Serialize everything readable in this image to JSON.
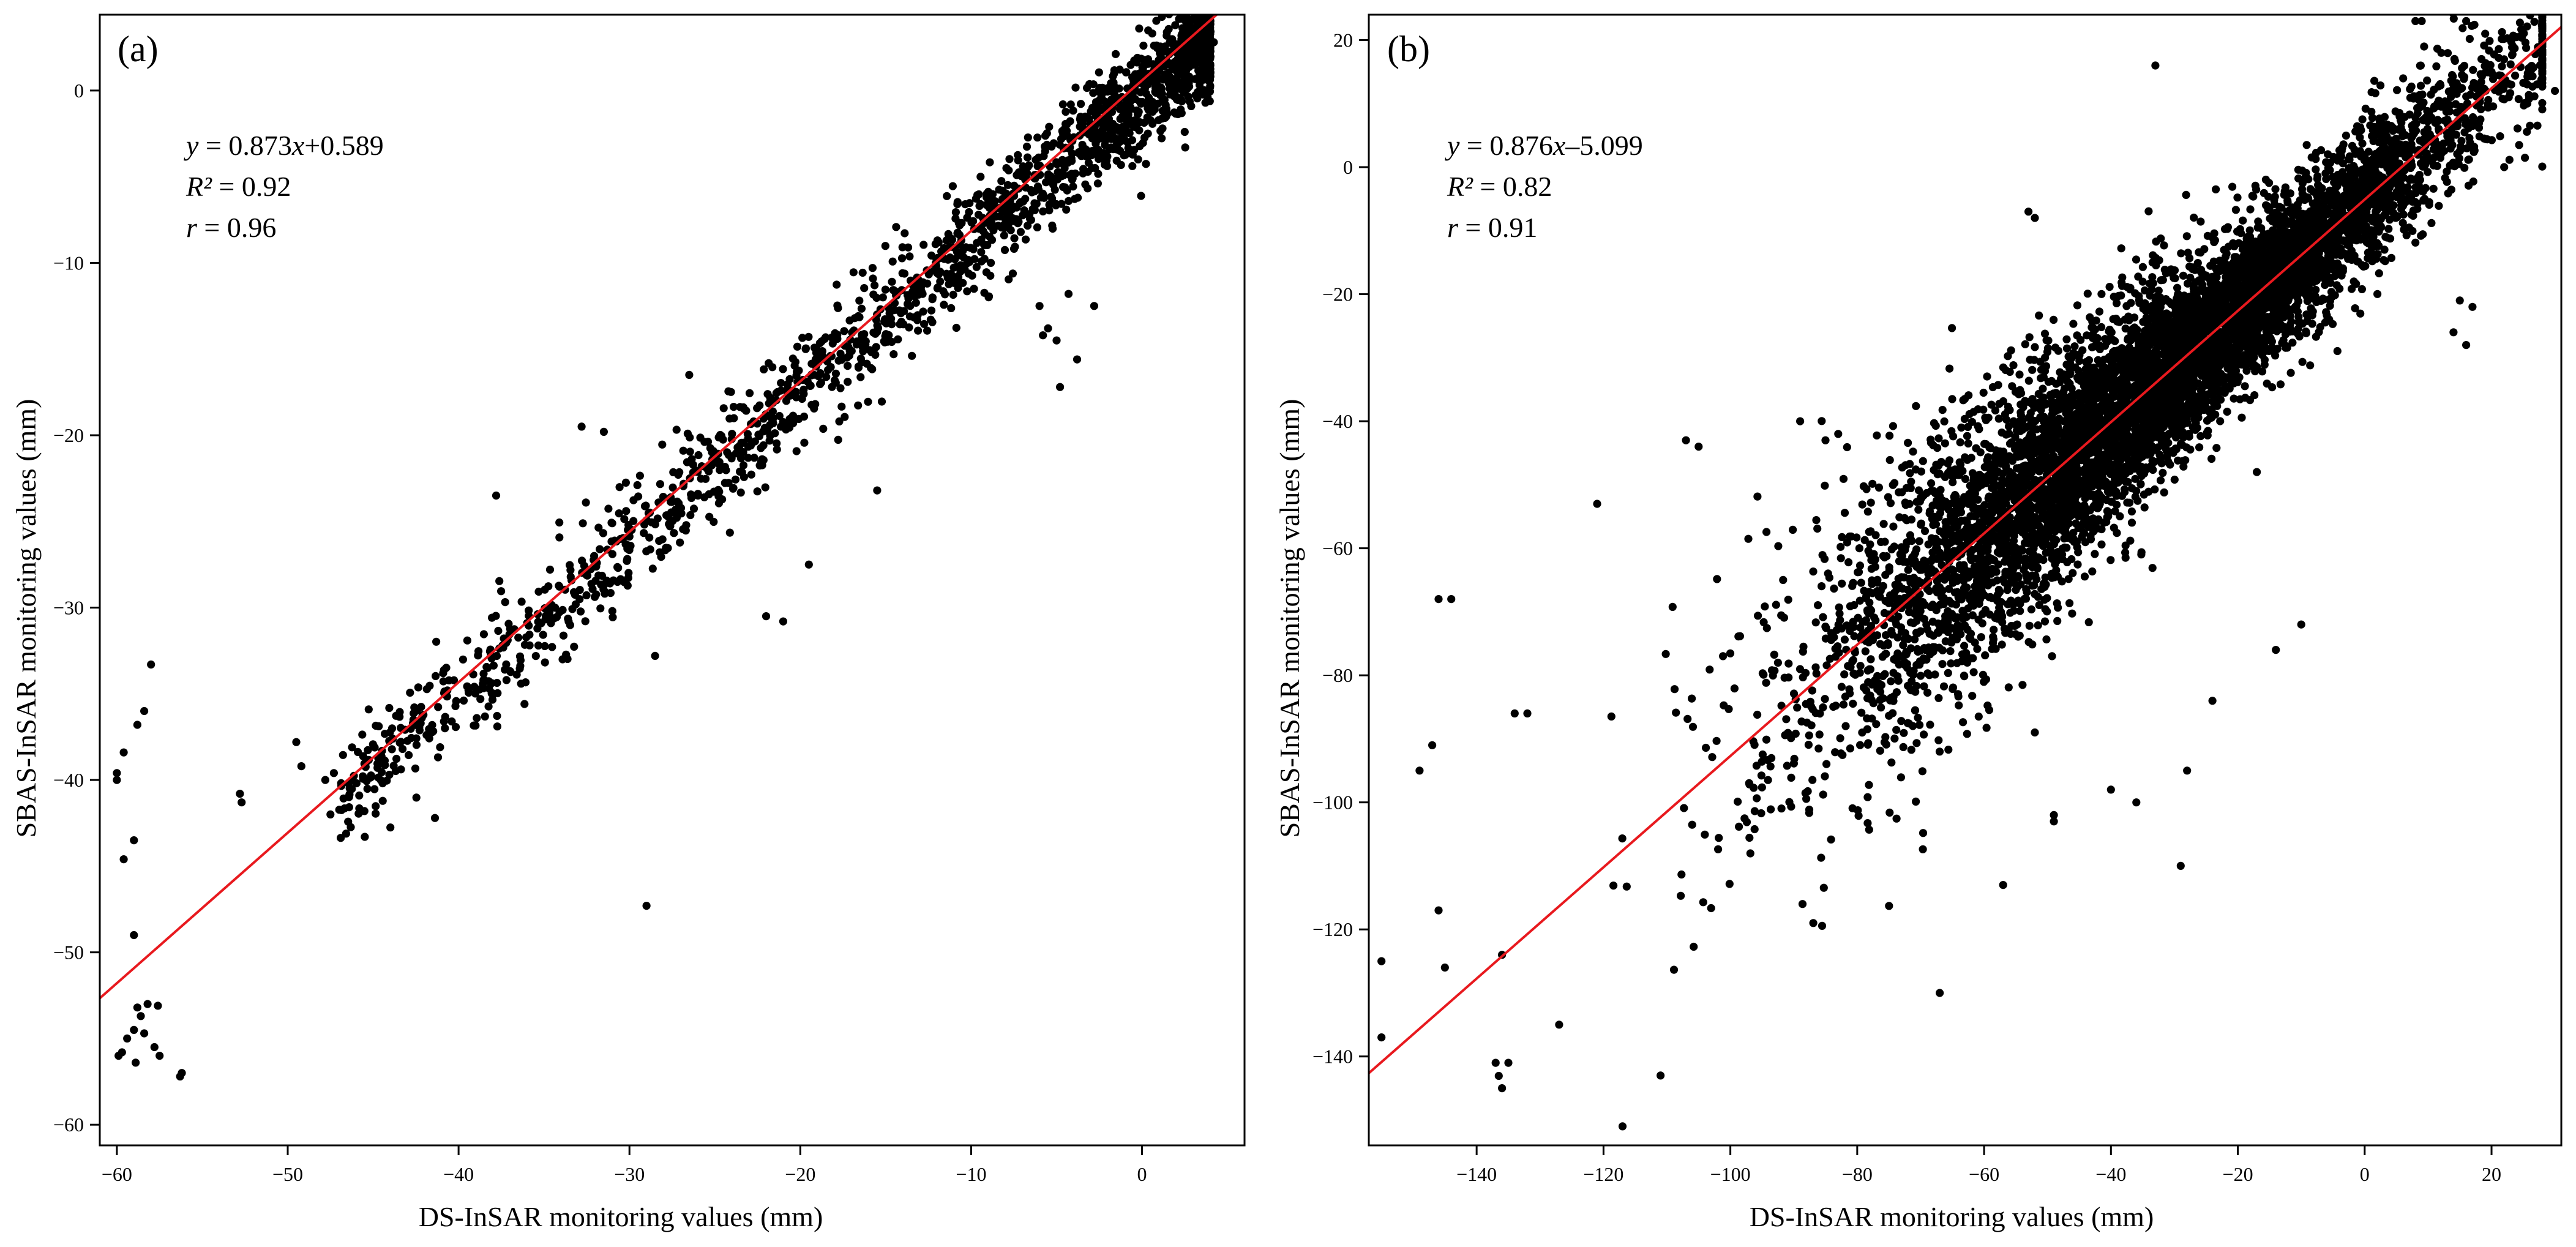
{
  "chart_data": [
    {
      "type": "scatter",
      "panel_label": "(a)",
      "xlabel": "DS-InSAR monitoring values (mm)",
      "ylabel": "SBAS-InSAR monitoring values (mm)",
      "xlim": [
        -61,
        6
      ],
      "ylim": [
        -61.2,
        4.4
      ],
      "x_ticks": [
        -60,
        -50,
        -40,
        -30,
        -20,
        -10,
        0
      ],
      "x_tick_labels": [
        "−60",
        "−50",
        "−40",
        "−30",
        "−20",
        "−10",
        "0"
      ],
      "y_ticks": [
        0,
        -10,
        -20,
        -30,
        -40,
        -50,
        -60
      ],
      "y_tick_labels": [
        "0",
        "−10",
        "−20",
        "−30",
        "−40",
        "−50",
        "−60"
      ],
      "fit": {
        "slope": 0.873,
        "intercept": 0.589,
        "color": "#e8191e"
      },
      "annotation": {
        "eq_y": "y",
        "eq_mid": " = 0.873",
        "eq_x": "x",
        "eq_const": "+0.589",
        "r2_label": "R²",
        "r2_value": " = 0.92",
        "r_label": "r",
        "r_value": " = 0.96"
      },
      "point_color": "#000000",
      "point_count_approx": 2000,
      "cloud": {
        "x_range": [
          -47,
          4
        ],
        "noise_sd": 1.6
      },
      "points": [
        [
          -60,
          -40
        ],
        [
          -60,
          -39.6
        ],
        [
          -59.6,
          -38.4
        ],
        [
          -59.6,
          -44.6
        ],
        [
          -58.8,
          -36.8
        ],
        [
          -58.4,
          -36
        ],
        [
          -58,
          -33.3
        ],
        [
          -59,
          -43.5
        ],
        [
          -59,
          -49
        ],
        [
          -59.4,
          -55
        ],
        [
          -59.9,
          -56
        ],
        [
          -59,
          -54.5
        ],
        [
          -58.6,
          -53.7
        ],
        [
          -58.2,
          -53
        ],
        [
          -57.8,
          -55.5
        ],
        [
          -57.5,
          -56
        ],
        [
          -59.7,
          -55.8
        ],
        [
          -58.9,
          -56.4
        ],
        [
          -58.4,
          -54.7
        ],
        [
          -57.6,
          -53.1
        ],
        [
          -58.8,
          -53.2
        ],
        [
          -56.2,
          -57
        ],
        [
          -56.3,
          -57.2
        ],
        [
          -52.8,
          -40.8
        ],
        [
          -52.7,
          -41.3
        ],
        [
          -49.5,
          -37.8
        ],
        [
          -49.2,
          -39.2
        ],
        [
          -47.8,
          -40
        ],
        [
          -47.5,
          -42
        ],
        [
          -47.3,
          -39.6
        ],
        [
          -29,
          -47.3
        ],
        [
          -5.5,
          -13.8
        ],
        [
          -5,
          -14.5
        ],
        [
          -4.8,
          -17.2
        ],
        [
          -15.5,
          -23.2
        ],
        [
          -4.3,
          -11.8
        ],
        [
          -6,
          -12.5
        ],
        [
          -31,
          -30.2
        ],
        [
          -28.5,
          -32.8
        ],
        [
          -31.5,
          -19.8
        ],
        [
          -37.8,
          -23.5
        ],
        [
          -42.5,
          -36
        ],
        [
          -40.8,
          -37
        ],
        [
          -38.3,
          -33.5
        ],
        [
          -21,
          -30.8
        ],
        [
          -22,
          -30.5
        ],
        [
          -19.5,
          -27.5
        ],
        [
          -32.8,
          -19.5
        ],
        [
          -26.5,
          -16.5
        ],
        [
          4.2,
          2.8
        ],
        [
          3.8,
          3.4
        ],
        [
          2.5,
          -2.4
        ],
        [
          1.2,
          -2.2
        ],
        [
          -2.8,
          -12.5
        ],
        [
          -3.8,
          -15.6
        ],
        [
          -5.8,
          -14.2
        ]
      ]
    },
    {
      "type": "scatter",
      "panel_label": "(b)",
      "xlabel": "DS-InSAR monitoring values (mm)",
      "ylabel": "SBAS-InSAR monitoring values (mm)",
      "xlim": [
        -157,
        31
      ],
      "ylim": [
        -154,
        24
      ],
      "x_ticks": [
        -140,
        -120,
        -100,
        -80,
        -60,
        -40,
        -20,
        0,
        20
      ],
      "x_tick_labels": [
        "−140",
        "−120",
        "−100",
        "−80",
        "−60",
        "−40",
        "−20",
        "0",
        "20"
      ],
      "y_ticks": [
        20,
        0,
        -20,
        -40,
        -60,
        -80,
        -100,
        -120,
        -140
      ],
      "y_tick_labels": [
        "20",
        "0",
        "−20",
        "−40",
        "−60",
        "−80",
        "−100",
        "−120",
        "−140"
      ],
      "fit": {
        "slope": 0.876,
        "intercept": -5.099,
        "color": "#e8191e"
      },
      "annotation": {
        "eq_y": "y",
        "eq_mid": " = 0.876",
        "eq_x": "x",
        "eq_const": "–5.099",
        "r2_label": "R²",
        "r2_value": " = 0.82",
        "r_label": "r",
        "r_value": " = 0.91"
      },
      "point_color": "#000000",
      "point_count_approx": 7000,
      "cloud": {
        "x_range": [
          -150,
          28
        ],
        "noise_sd": 9
      },
      "points": [
        [
          -155,
          -125
        ],
        [
          -155,
          -137
        ],
        [
          -149,
          -95
        ],
        [
          -147,
          -91
        ],
        [
          -146,
          -68
        ],
        [
          -144,
          -68
        ],
        [
          -146,
          -117
        ],
        [
          -145,
          -126
        ],
        [
          -137,
          -141
        ],
        [
          -136,
          -145
        ],
        [
          -135,
          -141
        ],
        [
          -136,
          -124
        ],
        [
          -134,
          -86
        ],
        [
          -132,
          -86
        ],
        [
          -127,
          -135
        ],
        [
          -117,
          -151
        ],
        [
          -111,
          -143
        ],
        [
          -121,
          -53
        ],
        [
          -107,
          -43
        ],
        [
          -105,
          -44
        ],
        [
          -53,
          -7
        ],
        [
          -52,
          -8
        ],
        [
          -33,
          16
        ],
        [
          8,
          23
        ],
        [
          9,
          23
        ],
        [
          16,
          23
        ],
        [
          19,
          21
        ],
        [
          20,
          15
        ],
        [
          28,
          15
        ],
        [
          30,
          12
        ],
        [
          22,
          0
        ],
        [
          15,
          -21
        ],
        [
          14,
          -26
        ],
        [
          16,
          -28
        ],
        [
          17,
          -22
        ],
        [
          -10,
          -72
        ],
        [
          -14,
          -76
        ],
        [
          -29,
          -110
        ],
        [
          -49,
          -102
        ],
        [
          -49,
          -103
        ],
        [
          -52,
          -89
        ],
        [
          -57,
          -113
        ],
        [
          -67,
          -130
        ],
        [
          -89,
          -40
        ],
        [
          -85,
          -43
        ],
        [
          -83,
          -42
        ],
        [
          -73,
          -77
        ],
        [
          -36,
          -100
        ],
        [
          -40,
          -98
        ],
        [
          -28,
          -95
        ],
        [
          -24,
          -84
        ],
        [
          -17,
          -48
        ]
      ]
    }
  ]
}
